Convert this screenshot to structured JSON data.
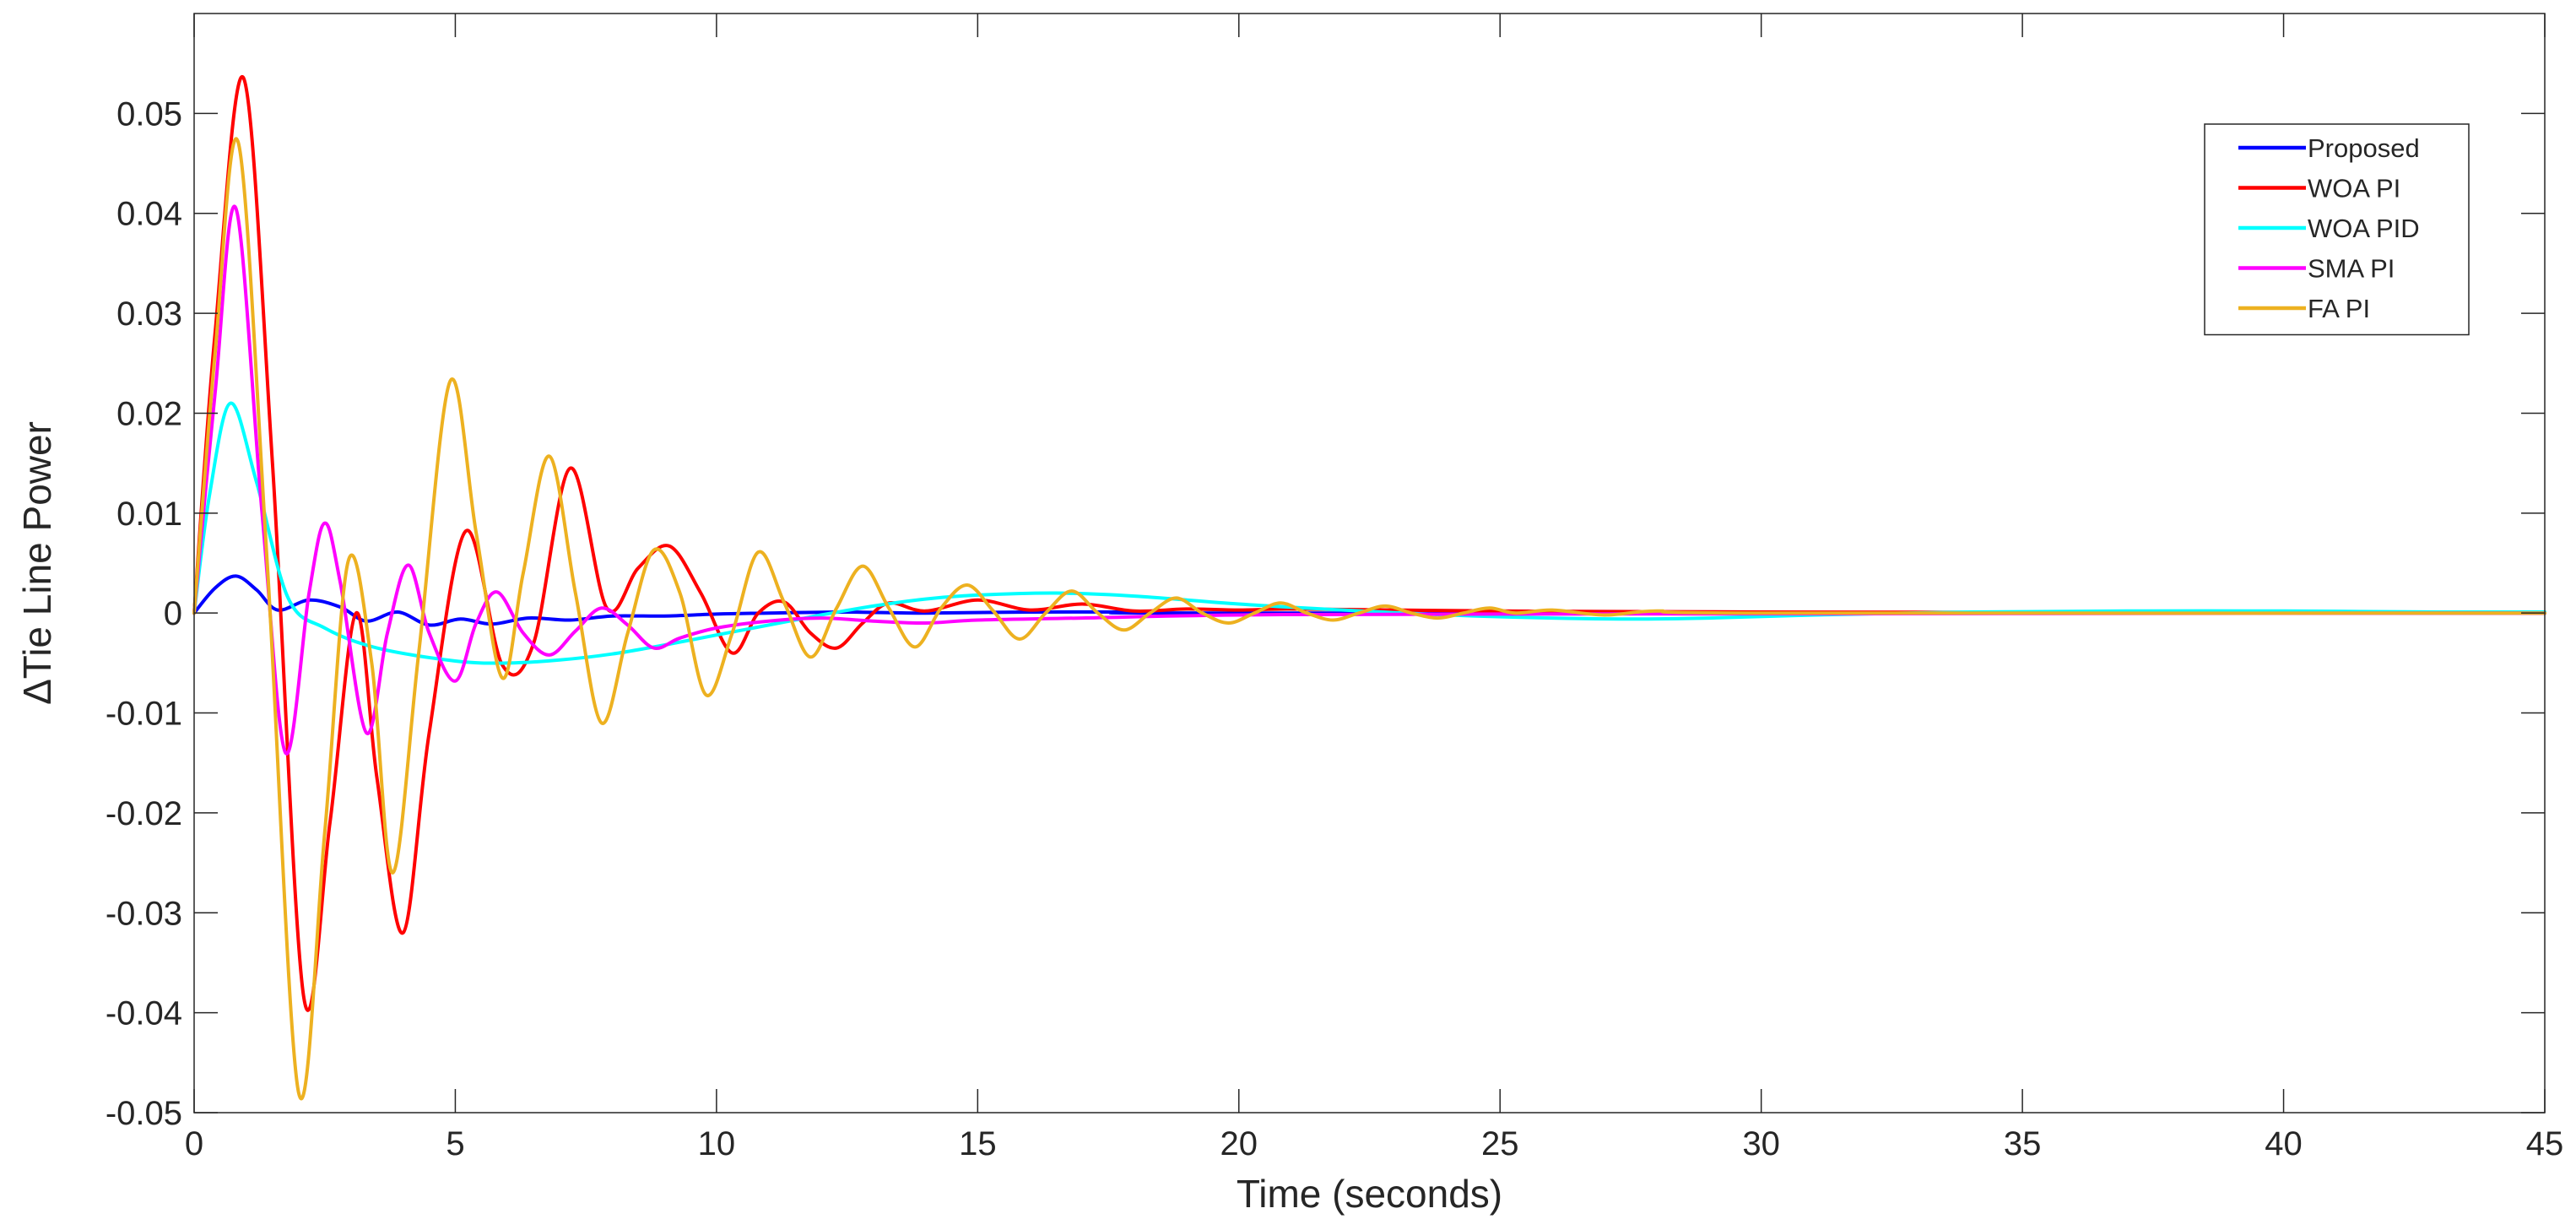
{
  "chart_data": {
    "type": "line",
    "title": "",
    "xlabel": "Time (seconds)",
    "ylabel": "ΔTie Line Power",
    "xlim": [
      0,
      45
    ],
    "ylim": [
      -0.05,
      0.06
    ],
    "xticks": [
      0,
      5,
      10,
      15,
      20,
      25,
      30,
      35,
      40,
      45
    ],
    "xtick_labels": [
      "0",
      "5",
      "10",
      "15",
      "20",
      "25",
      "30",
      "35",
      "40",
      "45"
    ],
    "yticks": [
      -0.05,
      -0.04,
      -0.03,
      -0.02,
      -0.01,
      0,
      0.01,
      0.02,
      0.03,
      0.04,
      0.05
    ],
    "ytick_labels": [
      "-0.05",
      "-0.04",
      "-0.03",
      "-0.02",
      "-0.01",
      "0",
      "0.01",
      "0.02",
      "0.03",
      "0.04",
      "0.05"
    ],
    "grid": false,
    "legend_position": "top-right",
    "series": [
      {
        "name": "Proposed",
        "color": "#0000ff",
        "x": [
          0,
          0.4,
          0.8,
          1.2,
          1.6,
          2.2,
          2.8,
          3.3,
          3.9,
          4.5,
          5.1,
          5.7,
          6.4,
          7.2,
          8.0,
          9.0,
          10.0,
          11.0,
          12.5,
          14.0,
          16.0,
          18.0,
          20.0,
          45
        ],
        "y": [
          0,
          0.0025,
          0.0037,
          0.0023,
          0.0003,
          0.0013,
          0.0006,
          -0.0008,
          0.0001,
          -0.0012,
          -0.0006,
          -0.0011,
          -0.0005,
          -0.0007,
          -0.0003,
          -0.0003,
          -0.0001,
          0.0,
          0.0001,
          0.0,
          0.0001,
          0.0001,
          0.0,
          0.0
        ]
      },
      {
        "name": "WOA PI",
        "color": "#ff0000",
        "x": [
          0,
          0.4,
          0.95,
          1.5,
          2.1,
          2.6,
          3.1,
          3.5,
          4.0,
          4.5,
          5.2,
          5.9,
          6.5,
          7.2,
          7.9,
          8.5,
          9.1,
          9.7,
          10.3,
          10.8,
          11.3,
          11.8,
          12.3,
          12.8,
          13.3,
          14.0,
          15.0,
          16.0,
          17.0,
          18.0,
          19.0,
          20.0,
          21.0,
          23.0,
          25.0,
          30.0,
          45
        ],
        "y": [
          0,
          0.028,
          0.0535,
          0.015,
          -0.0385,
          -0.021,
          0.0,
          -0.0165,
          -0.032,
          -0.012,
          0.0082,
          -0.0052,
          -0.003,
          0.0145,
          0.0005,
          0.0045,
          0.0067,
          0.002,
          -0.004,
          0.0,
          0.0011,
          -0.002,
          -0.0035,
          -0.001,
          0.001,
          0.0002,
          0.0013,
          0.0003,
          0.0009,
          0.0002,
          0.0004,
          0.0003,
          0.0004,
          0.0003,
          0.0002,
          0.0001,
          0.0
        ]
      },
      {
        "name": "WOA PID",
        "color": "#00ffff",
        "x": [
          0,
          0.3,
          0.7,
          1.2,
          1.8,
          2.5,
          3.5,
          5.0,
          6.0,
          7.0,
          8.0,
          9.0,
          10.0,
          11.0,
          12.0,
          13.0,
          14.0,
          15.0,
          16.5,
          18.0,
          20.0,
          22.0,
          24.0,
          26.0,
          27.5,
          29.0,
          31.0,
          34.0,
          37.0,
          40.0,
          43.0,
          45
        ],
        "y": [
          0,
          0.012,
          0.021,
          0.013,
          0.0015,
          -0.0015,
          -0.0035,
          -0.0048,
          -0.005,
          -0.0047,
          -0.0041,
          -0.0032,
          -0.0022,
          -0.0012,
          -0.0002,
          0.0007,
          0.0014,
          0.0018,
          0.002,
          0.0017,
          0.0009,
          0.0003,
          -0.0002,
          -0.0005,
          -0.0006,
          -0.0005,
          -0.0002,
          0.0001,
          0.0002,
          0.0002,
          0.0001,
          0.0001
        ]
      },
      {
        "name": "SMA PI",
        "color": "#ff00ff",
        "x": [
          0,
          0.4,
          0.8,
          1.3,
          1.75,
          2.2,
          2.5,
          2.8,
          3.3,
          3.7,
          4.1,
          4.5,
          5.0,
          5.4,
          5.8,
          6.3,
          6.8,
          7.3,
          7.8,
          8.3,
          8.8,
          9.3,
          10.0,
          11.0,
          12.0,
          13.0,
          14.0,
          15.0,
          17.0,
          20.0,
          25.0,
          45
        ],
        "y": [
          0,
          0.022,
          0.0405,
          0.01,
          -0.014,
          0.002,
          0.009,
          0.003,
          -0.012,
          -0.002,
          0.0048,
          -0.002,
          -0.0068,
          -0.001,
          0.0021,
          -0.002,
          -0.0042,
          -0.0018,
          0.0005,
          -0.0012,
          -0.0035,
          -0.0025,
          -0.0015,
          -0.0008,
          -0.0005,
          -0.0008,
          -0.001,
          -0.0007,
          -0.0005,
          -0.0002,
          -0.0001,
          0.0
        ]
      },
      {
        "name": "FA PI",
        "color": "#edb120",
        "x": [
          0,
          0.4,
          0.85,
          1.4,
          2.0,
          2.5,
          2.95,
          3.4,
          3.8,
          4.3,
          4.9,
          5.4,
          5.9,
          6.3,
          6.8,
          7.3,
          7.8,
          8.3,
          8.8,
          9.3,
          9.8,
          10.3,
          10.8,
          11.3,
          11.8,
          12.3,
          12.8,
          13.3,
          13.8,
          14.3,
          14.8,
          15.3,
          15.8,
          16.3,
          16.8,
          17.3,
          17.8,
          18.3,
          18.8,
          19.3,
          19.8,
          20.3,
          20.8,
          21.3,
          21.8,
          22.3,
          22.8,
          23.3,
          23.8,
          24.3,
          24.8,
          25.3,
          26.0,
          27.0,
          28.0,
          30.0,
          45
        ],
        "y": [
          0,
          0.026,
          0.047,
          0.005,
          -0.048,
          -0.022,
          0.0052,
          -0.005,
          -0.026,
          -0.004,
          0.0232,
          0.008,
          -0.0065,
          0.004,
          0.0157,
          0.002,
          -0.011,
          -0.002,
          0.0063,
          0.002,
          -0.0082,
          -0.002,
          0.0061,
          0.001,
          -0.0044,
          0.0005,
          0.0047,
          0.0005,
          -0.0034,
          0.0005,
          0.0028,
          0.0002,
          -0.0026,
          0.0,
          0.0022,
          0.0,
          -0.0017,
          0.0,
          0.0015,
          0.0,
          -0.001,
          0.0,
          0.001,
          0.0,
          -0.0007,
          0.0,
          0.0007,
          0.0,
          -0.0005,
          0.0,
          0.0005,
          0.0,
          0.0003,
          -0.0002,
          0.0002,
          0.0,
          0.0
        ]
      }
    ]
  }
}
